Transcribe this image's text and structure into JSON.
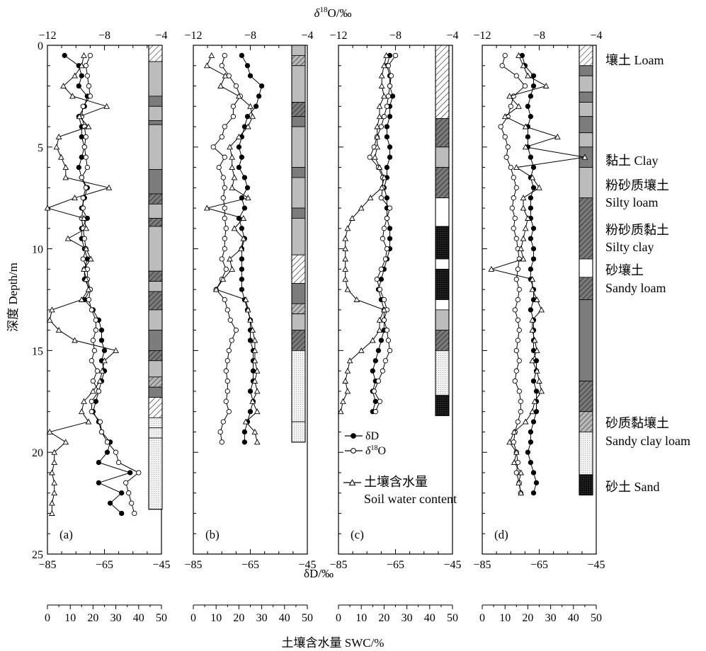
{
  "figure": {
    "top_axis_title": "δ18O/‰",
    "top_axis_title_main": "δ",
    "top_axis_title_sup": "18",
    "top_axis_title_rest": "O/‰",
    "top_ticks": [
      "−12",
      "−8",
      "−4"
    ],
    "bottom_axis_title": "δD/‰",
    "bottom_ticks": [
      "−85",
      "−65",
      "−45"
    ],
    "swc_axis_title": "土壤含水量 SWC/%",
    "swc_ticks": [
      "0",
      "10",
      "20",
      "30",
      "40",
      "50"
    ],
    "y_axis_title": "深度 Depth/m",
    "y_ticks": [
      "0",
      "5",
      "10",
      "15",
      "20",
      "25"
    ],
    "panel_labels": [
      "(a)",
      "(b)",
      "(c)",
      "(d)"
    ]
  },
  "legend": {
    "dD": "δD",
    "d18O_main": "δ",
    "d18O_sup": "18",
    "d18O_rest": "O",
    "swc_cn": "土壤含水量",
    "swc_en": "Soil water content"
  },
  "soil_legend": [
    {
      "cn": "壤土",
      "en": "Loam",
      "label1": "壤土 Loam",
      "label2": "",
      "pattern": "hatch"
    },
    {
      "cn": "黏土",
      "en": "Clay",
      "label1": "黏土 Clay",
      "label2": "",
      "pattern": "dark-gray"
    },
    {
      "cn": "粉砂质壤土",
      "en": "Silty loam",
      "label1": "粉砂质壤土",
      "label2": "Silty loam",
      "pattern": "light-gray"
    },
    {
      "cn": "粉砂质黏土",
      "en": "Silty clay",
      "label1": "粉砂质黏土",
      "label2": "Silty clay",
      "pattern": "dark-hatch"
    },
    {
      "cn": "砂壤土",
      "en": "Sandy loam",
      "label1": "砂壤土",
      "label2": "Sandy loam",
      "pattern": "white"
    },
    {
      "cn": "砂质黏壤土",
      "en": "Sandy clay loam",
      "label1": "砂质黏壤土",
      "label2": "Sandy clay loam",
      "pattern": "cross-hatch"
    },
    {
      "cn": "砂土",
      "en": "Sand",
      "label1": "砂土 Sand",
      "label2": "",
      "pattern": "black-dot"
    }
  ],
  "chart_data": [
    {
      "type": "line",
      "panel": "(a)",
      "y_axis": "depth_m",
      "ylim": [
        25,
        0
      ],
      "x_scales": {
        "dD_permil": [
          -85,
          -45
        ],
        "d18O_permil": [
          -12,
          -4
        ],
        "swc_percent": [
          0,
          50
        ]
      },
      "depth": [
        0.5,
        1.0,
        1.5,
        2.0,
        2.5,
        3.0,
        3.5,
        4.0,
        4.5,
        5.0,
        5.5,
        6.0,
        6.5,
        7.0,
        7.5,
        8.0,
        8.5,
        9.0,
        9.5,
        10.0,
        10.5,
        11.0,
        11.5,
        12.0,
        12.5,
        13.0,
        13.5,
        14.0,
        14.5,
        15.0,
        15.5,
        16.0,
        16.5,
        17.0,
        17.5,
        18.0,
        18.5,
        19.0,
        19.5,
        20.0,
        20.5,
        21.0,
        21.5,
        22.0,
        22.5,
        23.0
      ],
      "series": [
        {
          "name": "δD",
          "x": [
            -79,
            -74,
            -73,
            -74,
            -71,
            -72,
            -74,
            -73,
            -73,
            -72,
            -73,
            -74,
            -73,
            -71,
            -72,
            -73,
            -71,
            -73,
            -73,
            -72,
            -71,
            -72,
            -72,
            -70,
            -72,
            -69,
            -67,
            -66,
            -66,
            -65,
            -66,
            -65,
            -66,
            -67,
            -68,
            -69,
            -67,
            -66,
            -63,
            -64,
            -67,
            -56,
            -67,
            -59,
            -63,
            -59
          ]
        },
        {
          "name": "δ18O",
          "x": [
            -9.0,
            -9.3,
            -9.2,
            -9.1,
            -9.0,
            -9.5,
            -9.6,
            -9.4,
            -9.3,
            -9.4,
            -9.3,
            -9.2,
            -9.6,
            -9.3,
            -9.5,
            -9.5,
            -9.6,
            -9.5,
            -9.4,
            -9.3,
            -9.5,
            -9.2,
            -9.2,
            -9.0,
            -9.1,
            -8.9,
            -8.6,
            -8.6,
            -8.8,
            -8.7,
            -8.9,
            -8.5,
            -8.8,
            -8.4,
            -8.9,
            -8.9,
            -8.3,
            -8.2,
            -7.8,
            -7.2,
            -7.0,
            -5.6,
            -6.5,
            -6.3,
            -6.1,
            -5.9
          ]
        },
        {
          "name": "土壤含水量",
          "x": [
            16,
            15,
            12,
            7,
            11,
            26,
            14,
            18,
            5,
            4,
            6,
            8,
            8,
            27,
            12,
            0,
            16,
            17,
            9,
            17,
            19,
            16,
            17,
            18,
            15,
            2,
            1,
            5,
            12,
            30,
            25,
            24,
            23,
            20,
            16,
            15,
            18,
            1,
            8,
            3,
            3,
            2,
            3,
            3,
            2,
            2
          ]
        }
      ]
    },
    {
      "type": "line",
      "panel": "(b)",
      "y_axis": "depth_m",
      "ylim": [
        25,
        0
      ],
      "x_scales": {
        "dD_permil": [
          -85,
          -45
        ],
        "d18O_permil": [
          -12,
          -4
        ],
        "swc_percent": [
          0,
          50
        ]
      },
      "depth": [
        0.5,
        1.0,
        1.5,
        2.0,
        2.5,
        3.0,
        3.5,
        4.0,
        4.5,
        5.0,
        5.5,
        6.0,
        6.5,
        7.0,
        7.5,
        8.0,
        8.5,
        9.0,
        9.5,
        10.0,
        10.5,
        11.0,
        11.5,
        12.0,
        12.5,
        13.0,
        13.5,
        14.0,
        14.5,
        15.0,
        15.5,
        16.0,
        16.5,
        17.0,
        17.5,
        18.0,
        18.5,
        19.0,
        19.5
      ],
      "series": [
        {
          "name": "δD",
          "x": [
            -68,
            -66,
            -65,
            -61,
            -62,
            -63,
            -66,
            -67,
            -68,
            -69,
            -68,
            -69,
            -67,
            -66,
            -68,
            -67,
            -69,
            -68,
            -67,
            -68,
            -68,
            -68,
            -68,
            -68,
            -67,
            -66,
            -65,
            -65,
            -65,
            -64,
            -64,
            -64,
            -64,
            -65,
            -64,
            -65,
            -66,
            -67,
            -67
          ]
        },
        {
          "name": "δ18O",
          "x": [
            -9.8,
            -10.0,
            -9.5,
            -9.0,
            -8.7,
            -9.2,
            -9.2,
            -9.8,
            -10.0,
            -10.6,
            -9.8,
            -10.2,
            -9.9,
            -9.8,
            -9.9,
            -9.8,
            -9.8,
            -9.7,
            -9.8,
            -9.8,
            -10.0,
            -9.7,
            -10.0,
            -10.4,
            -9.8,
            -9.6,
            -9.4,
            -9.0,
            -9.3,
            -9.5,
            -9.6,
            -9.7,
            -9.6,
            -9.6,
            -9.7,
            -9.5,
            -9.9,
            -10.1,
            -10.0
          ]
        },
        {
          "name": "土壤含水量",
          "x": [
            8,
            6,
            14,
            12,
            20,
            25,
            26,
            24,
            20,
            16,
            17,
            17,
            18,
            17,
            24,
            6,
            22,
            18,
            22,
            21,
            16,
            17,
            13,
            10,
            23,
            24,
            25,
            26,
            27,
            27,
            27,
            28,
            27,
            28,
            26,
            28,
            23,
            27,
            28
          ]
        }
      ]
    },
    {
      "type": "line",
      "panel": "(c)",
      "y_axis": "depth_m",
      "ylim": [
        25,
        0
      ],
      "x_scales": {
        "dD_permil": [
          -85,
          -45
        ],
        "d18O_permil": [
          -12,
          -4
        ],
        "swc_percent": [
          0,
          50
        ]
      },
      "depth": [
        0.5,
        1.0,
        1.5,
        2.0,
        2.5,
        3.0,
        3.5,
        4.0,
        4.5,
        5.0,
        5.5,
        6.0,
        6.5,
        7.0,
        7.5,
        8.0,
        8.5,
        9.0,
        9.5,
        10.0,
        10.5,
        11.0,
        11.5,
        12.0,
        12.5,
        13.0,
        13.5,
        14.0,
        14.5,
        15.0,
        15.5,
        16.0,
        16.5,
        17.0,
        17.5,
        18.0
      ],
      "series": [
        {
          "name": "δD",
          "x": [
            -67,
            -68,
            -67,
            -67,
            -66,
            -67,
            -67,
            -68,
            -68,
            -67,
            -67,
            -68,
            -68,
            -69,
            -68,
            -68,
            -68,
            -67,
            -67,
            -67,
            -68,
            -69,
            -70,
            -71,
            -70,
            -69,
            -69,
            -69,
            -70,
            -71,
            -72,
            -73,
            -72,
            -73,
            -72,
            -73
          ]
        },
        {
          "name": "δ18O",
          "x": [
            -8.0,
            -8.5,
            -8.3,
            -8.4,
            -8.5,
            -8.6,
            -8.8,
            -9.0,
            -9.3,
            -9.5,
            -9.8,
            -9.2,
            -8.9,
            -8.9,
            -9.0,
            -8.4,
            -8.6,
            -8.8,
            -8.9,
            -8.6,
            -8.7,
            -9.0,
            -9.3,
            -9.1,
            -8.8,
            -8.6,
            -8.8,
            -8.6,
            -8.5,
            -8.4,
            -8.7,
            -8.9,
            -9.2,
            -9.5,
            -9.1,
            -9.4
          ]
        },
        {
          "name": "土壤含水量",
          "x": [
            21,
            20,
            19,
            19,
            20,
            18,
            18,
            17,
            17,
            17,
            16,
            18,
            20,
            19,
            14,
            10,
            6,
            4,
            3,
            3,
            3,
            3,
            3,
            4,
            8,
            20,
            18,
            18,
            15,
            10,
            5,
            4,
            3,
            4,
            2,
            1
          ]
        }
      ]
    },
    {
      "type": "line",
      "panel": "(d)",
      "y_axis": "depth_m",
      "ylim": [
        25,
        0
      ],
      "x_scales": {
        "dD_permil": [
          -85,
          -45
        ],
        "d18O_permil": [
          -12,
          -4
        ],
        "swc_percent": [
          0,
          50
        ]
      },
      "depth": [
        0.5,
        1.0,
        1.5,
        2.0,
        2.5,
        3.0,
        3.5,
        4.0,
        4.5,
        5.0,
        5.5,
        6.0,
        6.5,
        7.0,
        7.5,
        8.0,
        8.5,
        9.0,
        9.5,
        10.0,
        10.5,
        11.0,
        11.5,
        12.0,
        12.5,
        13.0,
        13.5,
        14.0,
        14.5,
        15.0,
        15.5,
        16.0,
        16.5,
        17.0,
        17.5,
        18.0,
        18.5,
        19.0,
        19.5,
        20.0,
        20.5,
        21.0,
        21.5,
        22.0
      ],
      "series": [
        {
          "name": "δD",
          "x": [
            -71,
            -70,
            -67,
            -67,
            -68,
            -69,
            -68,
            -69,
            -69,
            -69,
            -68,
            -67,
            -68,
            -67,
            -68,
            -68,
            -68,
            -67,
            -68,
            -67,
            -67,
            -68,
            -68,
            -67,
            -67,
            -68,
            -67,
            -67,
            -67,
            -67,
            -66,
            -66,
            -67,
            -66,
            -66,
            -66,
            -67,
            -68,
            -68,
            -69,
            -68,
            -67,
            -66,
            -67
          ]
        },
        {
          "name": "δ18O",
          "x": [
            -10.4,
            -10.6,
            -9.6,
            -9.0,
            -9.8,
            -10.0,
            -10.2,
            -10.7,
            -10.4,
            -10.2,
            -10.3,
            -10.0,
            -9.8,
            -9.6,
            -9.8,
            -9.9,
            -9.7,
            -9.8,
            -9.6,
            -9.5,
            -9.4,
            -9.5,
            -9.6,
            -9.4,
            -9.5,
            -9.7,
            -9.5,
            -9.4,
            -9.5,
            -9.6,
            -9.4,
            -9.6,
            -9.7,
            -9.4,
            -9.3,
            -9.3,
            -9.5,
            -9.7,
            -9.8,
            -9.6,
            -9.5,
            -9.6,
            -9.4,
            -9.3
          ]
        },
        {
          "name": "土壤含水量",
          "x": [
            16,
            18,
            20,
            28,
            12,
            16,
            10,
            19,
            33,
            19,
            45,
            15,
            22,
            25,
            18,
            18,
            20,
            19,
            18,
            17,
            18,
            4,
            22,
            22,
            24,
            26,
            22,
            22,
            23,
            24,
            22,
            24,
            25,
            26,
            23,
            22,
            19,
            14,
            12,
            15,
            14,
            17,
            16,
            17
          ]
        }
      ]
    }
  ]
}
